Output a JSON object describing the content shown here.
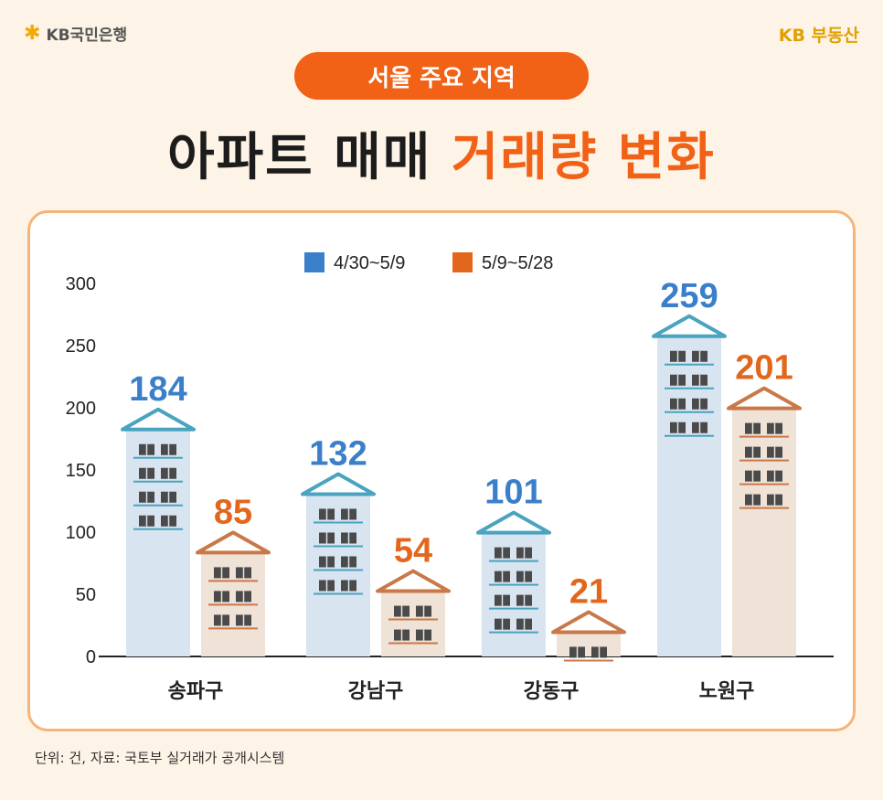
{
  "header": {
    "bank_name": "KB국민은행",
    "brand_right": "KB 부동산",
    "pill_label": "서울 주요 지역",
    "title_dark": "아파트 매매 ",
    "title_accent": "거래량 변화"
  },
  "footer": {
    "note": "단위: 건, 자료: 국토부 실거래가 공개시스템"
  },
  "colors": {
    "series1": "#3a7fc9",
    "series2": "#e2671c",
    "pill": "#f16116",
    "border": "#f4b57c"
  },
  "chart_data": {
    "type": "bar",
    "categories": [
      "송파구",
      "강남구",
      "강동구",
      "노원구"
    ],
    "series": [
      {
        "name": "4/30~5/9",
        "values": [
          184,
          132,
          101,
          259
        ]
      },
      {
        "name": "5/9~5/28",
        "values": [
          85,
          54,
          21,
          201
        ]
      }
    ],
    "yticks": [
      0,
      50,
      100,
      150,
      200,
      250,
      300
    ],
    "ylim": [
      0,
      300
    ],
    "legend": "top-center",
    "grid": false
  }
}
